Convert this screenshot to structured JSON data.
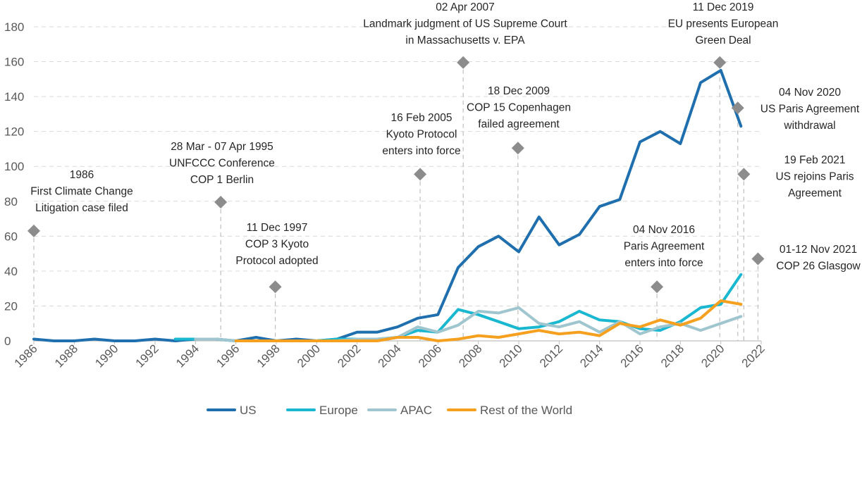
{
  "chart_data": {
    "type": "line",
    "x": [
      1986,
      1987,
      1988,
      1989,
      1990,
      1991,
      1992,
      1993,
      1994,
      1995,
      1996,
      1997,
      1998,
      1999,
      2000,
      2001,
      2002,
      2003,
      2004,
      2005,
      2006,
      2007,
      2008,
      2009,
      2010,
      2011,
      2012,
      2013,
      2014,
      2015,
      2016,
      2017,
      2018,
      2019,
      2020,
      2021
    ],
    "xlim": [
      1986,
      2022
    ],
    "ylim": [
      0,
      180
    ],
    "x_ticks": [
      "1986",
      "1988",
      "1990",
      "1992",
      "1994",
      "1996",
      "1998",
      "2000",
      "2002",
      "2004",
      "2006",
      "2008",
      "2010",
      "2012",
      "2014",
      "2016",
      "2018",
      "2020",
      "2022"
    ],
    "y_ticks": [
      "0",
      "20",
      "40",
      "60",
      "80",
      "100",
      "120",
      "140",
      "160",
      "180"
    ],
    "grid": "horizontal",
    "legend_position": "bottom",
    "series": [
      {
        "name": "US",
        "color": "#1f6fae",
        "values": [
          1,
          0,
          0,
          1,
          0,
          0,
          1,
          0,
          1,
          1,
          0,
          2,
          0,
          1,
          0,
          1,
          5,
          5,
          8,
          13,
          15,
          42,
          54,
          60,
          51,
          71,
          55,
          61,
          77,
          81,
          114,
          120,
          113,
          148,
          155,
          123
        ]
      },
      {
        "name": "Europe",
        "color": "#1ab7d0",
        "values": [
          null,
          null,
          null,
          null,
          null,
          null,
          null,
          1,
          1,
          1,
          0,
          0,
          0,
          0,
          0,
          1,
          1,
          1,
          2,
          6,
          5,
          18,
          15,
          11,
          7,
          8,
          11,
          17,
          12,
          11,
          7,
          6,
          11,
          19,
          21,
          38
        ]
      },
      {
        "name": "APAC",
        "color": "#9fc5cf",
        "values": [
          null,
          null,
          null,
          null,
          null,
          null,
          null,
          null,
          1,
          1,
          0,
          0,
          0,
          0,
          0,
          0,
          1,
          1,
          2,
          8,
          5,
          9,
          17,
          16,
          19,
          10,
          8,
          11,
          5,
          11,
          4,
          8,
          10,
          6,
          10,
          14
        ]
      },
      {
        "name": "Rest of the World",
        "color": "#f5a01f",
        "values": [
          null,
          null,
          null,
          null,
          null,
          null,
          null,
          null,
          null,
          null,
          0,
          0,
          0,
          0,
          0,
          0,
          0,
          0,
          2,
          2,
          0,
          1,
          3,
          2,
          4,
          6,
          4,
          5,
          3,
          10,
          8,
          12,
          9,
          13,
          23,
          21
        ]
      }
    ],
    "events": [
      {
        "x": 1986.0,
        "y": 63,
        "lines": [
          "1986",
          "First Climate Change",
          "Litigation case filed"
        ]
      },
      {
        "x": 1995.25,
        "y": 79.5,
        "lines": [
          "28 Mar - 07 Apr 1995",
          "UNFCCC Conference",
          "COP 1 Berlin"
        ]
      },
      {
        "x": 1997.95,
        "y": 31,
        "lines": [
          "11 Dec 1997",
          "COP 3 Kyoto",
          "Protocol adopted"
        ]
      },
      {
        "x": 2005.12,
        "y": 95.5,
        "lines": [
          "16 Feb 2005",
          "Kyoto Protocol",
          "enters into force"
        ]
      },
      {
        "x": 2007.25,
        "y": 159.5,
        "lines": [
          "02 Apr 2007",
          "Landmark judgment of US Supreme Court",
          "in Massachusetts v. EPA"
        ]
      },
      {
        "x": 2009.96,
        "y": 110.5,
        "lines": [
          "18 Dec 2009",
          "COP 15 Copenhagen",
          "failed agreement"
        ]
      },
      {
        "x": 2016.84,
        "y": 31,
        "lines": [
          "04 Nov 2016",
          "Paris Agreement",
          "enters into force"
        ]
      },
      {
        "x": 2019.95,
        "y": 159.5,
        "lines": [
          "11 Dec 2019",
          "EU presents European",
          "Green Deal"
        ]
      },
      {
        "x": 2020.84,
        "y": 133.5,
        "lines": [
          "04 Nov 2020",
          "US Paris Agreement",
          "withdrawal"
        ]
      },
      {
        "x": 2021.14,
        "y": 95.5,
        "lines": [
          "19 Feb 2021",
          "US rejoins Paris",
          "Agreement"
        ]
      },
      {
        "x": 2021.84,
        "y": 47,
        "lines": [
          "01-12 Nov 2021",
          "COP 26 Glasgow"
        ]
      }
    ],
    "marker_color": "#8c8c8c"
  }
}
